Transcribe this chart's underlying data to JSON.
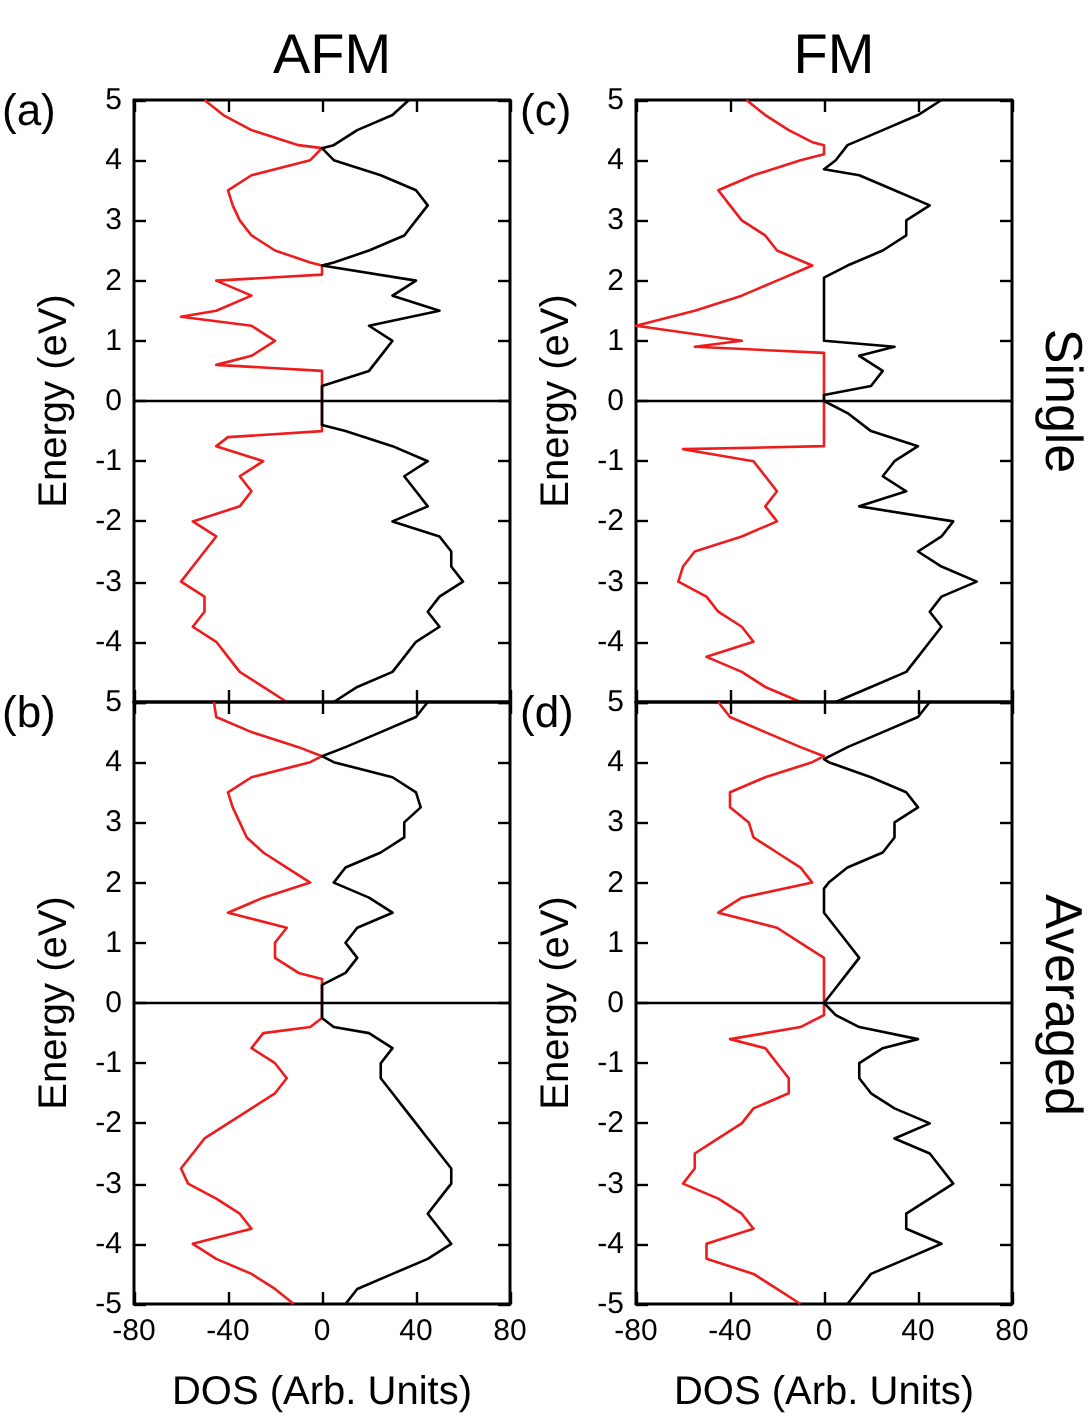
{
  "chart_data": [
    {
      "type": "line",
      "title": "AFM",
      "ylabel": "Energy (eV)",
      "annotations": [
        "(a)"
      ],
      "xlim": [
        -80,
        80
      ],
      "ylim": [
        -5,
        5
      ],
      "xticks": [
        -80,
        -40,
        0,
        40,
        80
      ],
      "yticks": [
        {
          "value": -5,
          "label": null
        },
        -4,
        -3,
        -2,
        -1,
        0,
        1,
        2,
        3,
        4,
        5
      ],
      "tick_labels": "y",
      "marker": "none",
      "line_style": "solid",
      "ref_lines": [
        {
          "axis": "y",
          "value": 0,
          "color": "#000000"
        }
      ],
      "series": [
        {
          "color": "#ee1c1c",
          "x": [
            -50,
            -42,
            -30,
            -10,
            0,
            -5,
            -30,
            -40,
            -38,
            -35,
            -30,
            -20,
            -5,
            0,
            0,
            -45,
            -30,
            -45,
            -60,
            -30,
            -20,
            -30,
            -45,
            0,
            0,
            0,
            0,
            0,
            -40,
            -45,
            -25,
            -35,
            -30,
            -35,
            -55,
            -45,
            -50,
            -55,
            -60,
            -50,
            -50,
            -55,
            -45,
            -40,
            -35,
            -25,
            -15
          ],
          "values": [
            5,
            4.75,
            4.5,
            4.25,
            4.2,
            4,
            3.75,
            3.5,
            3.25,
            3,
            2.75,
            2.5,
            2.3,
            2.25,
            2.1,
            2,
            1.75,
            1.5,
            1.4,
            1.25,
            1,
            0.75,
            0.6,
            0.5,
            0.25,
            0,
            -0.25,
            -0.5,
            -0.6,
            -0.75,
            -1,
            -1.25,
            -1.5,
            -1.75,
            -2,
            -2.25,
            -2.5,
            -2.75,
            -3,
            -3.25,
            -3.5,
            -3.75,
            -4,
            -4.25,
            -4.5,
            -4.75,
            -5
          ]
        },
        {
          "color": "#000000",
          "x": [
            37,
            30,
            15,
            5,
            0,
            5,
            25,
            40,
            45,
            40,
            35,
            20,
            5,
            0,
            40,
            30,
            50,
            20,
            30,
            25,
            20,
            0,
            0,
            0,
            0,
            10,
            30,
            45,
            35,
            40,
            45,
            30,
            50,
            55,
            55,
            60,
            50,
            45,
            50,
            40,
            35,
            30,
            15,
            5
          ],
          "values": [
            5,
            4.75,
            4.5,
            4.25,
            4.2,
            4,
            3.75,
            3.5,
            3.25,
            3,
            2.75,
            2.5,
            2.3,
            2.25,
            2,
            1.75,
            1.5,
            1.25,
            1,
            0.75,
            0.5,
            0.25,
            0,
            -0.25,
            -0.4,
            -0.5,
            -0.75,
            -1,
            -1.25,
            -1.5,
            -1.75,
            -2,
            -2.25,
            -2.5,
            -2.75,
            -3,
            -3.25,
            -3.5,
            -3.75,
            -4,
            -4.25,
            -4.5,
            -4.75,
            -5
          ]
        }
      ]
    },
    {
      "type": "line",
      "title": "FM",
      "ylabel": "Energy (eV)",
      "y2label": "Single",
      "annotations": [
        "(c)"
      ],
      "xlim": [
        -80,
        80
      ],
      "ylim": [
        -5,
        5
      ],
      "xticks": [
        -80,
        -40,
        0,
        40,
        80
      ],
      "yticks": [
        {
          "value": -5,
          "label": null
        },
        -4,
        -3,
        -2,
        -1,
        0,
        1,
        2,
        3,
        4,
        5
      ],
      "tick_labels": "y",
      "marker": "none",
      "line_style": "solid",
      "ref_lines": [
        {
          "axis": "y",
          "value": 0,
          "color": "#000000"
        }
      ],
      "series": [
        {
          "color": "#ee1c1c",
          "x": [
            -33,
            -25,
            -15,
            -5,
            0,
            0,
            -10,
            -30,
            -45,
            -40,
            -35,
            -25,
            -20,
            -5,
            -20,
            -35,
            -55,
            -80,
            -35,
            -55,
            0,
            0,
            0,
            0,
            0,
            -60,
            -30,
            -25,
            -20,
            -25,
            -20,
            -35,
            -55,
            -60,
            -62,
            -50,
            -45,
            -35,
            -30,
            -50,
            -35,
            -25,
            -10
          ],
          "values": [
            5,
            4.75,
            4.5,
            4.3,
            4.25,
            4.1,
            4,
            3.75,
            3.5,
            3.25,
            3,
            2.75,
            2.5,
            2.25,
            2,
            1.75,
            1.5,
            1.25,
            1,
            0.9,
            0.8,
            0.5,
            0,
            -0.5,
            -0.75,
            -0.8,
            -1,
            -1.25,
            -1.5,
            -1.75,
            -2,
            -2.25,
            -2.5,
            -2.75,
            -3,
            -3.25,
            -3.5,
            -3.75,
            -4,
            -4.25,
            -4.5,
            -4.75,
            -5
          ]
        },
        {
          "color": "#000000",
          "x": [
            50,
            40,
            25,
            10,
            5,
            0,
            15,
            30,
            45,
            35,
            35,
            25,
            10,
            0,
            0,
            0,
            0,
            30,
            15,
            25,
            20,
            0,
            0,
            10,
            20,
            40,
            30,
            25,
            35,
            15,
            55,
            50,
            40,
            50,
            65,
            50,
            45,
            50,
            45,
            40,
            35,
            20,
            5
          ],
          "values": [
            5,
            4.75,
            4.5,
            4.25,
            4,
            3.85,
            3.75,
            3.5,
            3.25,
            3,
            2.75,
            2.5,
            2.25,
            2.05,
            2,
            1.5,
            1,
            0.9,
            0.75,
            0.5,
            0.25,
            0.1,
            0,
            -0.2,
            -0.5,
            -0.75,
            -1,
            -1.25,
            -1.5,
            -1.75,
            -2,
            -2.25,
            -2.5,
            -2.75,
            -3,
            -3.25,
            -3.5,
            -3.75,
            -4,
            -4.25,
            -4.5,
            -4.75,
            -5
          ]
        }
      ]
    },
    {
      "type": "line",
      "xlabel": "DOS (Arb. Units)",
      "ylabel": "Energy (eV)",
      "annotations": [
        "(b)"
      ],
      "xlim": [
        -80,
        80
      ],
      "ylim": [
        -5,
        5
      ],
      "xticks": [
        -80,
        -40,
        0,
        40,
        80
      ],
      "yticks": [
        -5,
        -4,
        -3,
        -2,
        -1,
        0,
        1,
        2,
        3,
        4,
        5
      ],
      "marker": "none",
      "line_style": "solid",
      "ref_lines": [
        {
          "axis": "y",
          "value": 0,
          "color": "#000000"
        }
      ],
      "series": [
        {
          "color": "#ee1c1c",
          "x": [
            -46,
            -45,
            -30,
            -10,
            0,
            -5,
            -30,
            -40,
            -38,
            -35,
            -32,
            -25,
            -15,
            -5,
            -25,
            -40,
            -15,
            -20,
            -20,
            -10,
            0,
            0,
            0,
            0,
            -5,
            -25,
            -30,
            -20,
            -15,
            -20,
            -30,
            -40,
            -50,
            -55,
            -60,
            -57,
            -45,
            -35,
            -30,
            -55,
            -45,
            -30,
            -20,
            -12
          ],
          "values": [
            5,
            4.75,
            4.5,
            4.25,
            4.1,
            4,
            3.75,
            3.5,
            3.25,
            3,
            2.75,
            2.5,
            2.25,
            2,
            1.75,
            1.5,
            1.25,
            1,
            0.75,
            0.5,
            0.4,
            0.25,
            0,
            -0.25,
            -0.4,
            -0.5,
            -0.75,
            -1,
            -1.25,
            -1.5,
            -1.75,
            -2,
            -2.25,
            -2.5,
            -2.75,
            -3,
            -3.25,
            -3.5,
            -3.75,
            -4,
            -4.25,
            -4.5,
            -4.75,
            -5
          ]
        },
        {
          "color": "#000000",
          "x": [
            45,
            40,
            25,
            10,
            0,
            5,
            30,
            40,
            42,
            35,
            35,
            25,
            10,
            5,
            20,
            30,
            15,
            10,
            15,
            10,
            0,
            0,
            0,
            5,
            20,
            30,
            25,
            25,
            30,
            35,
            40,
            45,
            50,
            55,
            55,
            50,
            45,
            50,
            55,
            45,
            30,
            15,
            10
          ],
          "values": [
            5,
            4.75,
            4.5,
            4.25,
            4.1,
            4,
            3.75,
            3.5,
            3.25,
            3,
            2.75,
            2.5,
            2.25,
            2,
            1.75,
            1.5,
            1.25,
            1,
            0.75,
            0.5,
            0.3,
            0,
            -0.25,
            -0.4,
            -0.5,
            -0.75,
            -1,
            -1.25,
            -1.5,
            -1.75,
            -2,
            -2.25,
            -2.5,
            -2.75,
            -3,
            -3.25,
            -3.5,
            -3.75,
            -4,
            -4.25,
            -4.5,
            -4.75,
            -5
          ]
        }
      ]
    },
    {
      "type": "line",
      "xlabel": "DOS (Arb. Units)",
      "ylabel": "Energy (eV)",
      "y2label": "Averaged",
      "annotations": [
        "(d)"
      ],
      "xlim": [
        -80,
        80
      ],
      "ylim": [
        -5,
        5
      ],
      "xticks": [
        -80,
        -40,
        0,
        40,
        80
      ],
      "yticks": [
        -5,
        -4,
        -3,
        -2,
        -1,
        0,
        1,
        2,
        3,
        4,
        5
      ],
      "marker": "none",
      "line_style": "solid",
      "ref_lines": [
        {
          "axis": "y",
          "value": 0,
          "color": "#000000"
        }
      ],
      "series": [
        {
          "color": "#ee1c1c",
          "x": [
            -45,
            -40,
            -25,
            -10,
            0,
            -5,
            -25,
            -40,
            -40,
            -32,
            -30,
            -20,
            -10,
            -5,
            -35,
            -45,
            -20,
            -10,
            0,
            0,
            0,
            0,
            -10,
            -40,
            -25,
            -20,
            -15,
            -15,
            -30,
            -35,
            -45,
            -55,
            -55,
            -60,
            -45,
            -35,
            -30,
            -50,
            -50,
            -30,
            -20,
            -10
          ],
          "values": [
            5,
            4.75,
            4.5,
            4.25,
            4.1,
            4,
            3.75,
            3.5,
            3.25,
            3,
            2.75,
            2.5,
            2.25,
            2,
            1.75,
            1.5,
            1.25,
            1,
            0.75,
            0.5,
            0,
            -0.2,
            -0.4,
            -0.6,
            -0.75,
            -1,
            -1.25,
            -1.5,
            -1.75,
            -2,
            -2.25,
            -2.5,
            -2.75,
            -3,
            -3.25,
            -3.5,
            -3.75,
            -4,
            -4.25,
            -4.5,
            -4.75,
            -5
          ]
        },
        {
          "color": "#000000",
          "x": [
            45,
            40,
            25,
            10,
            0,
            2,
            20,
            35,
            40,
            30,
            30,
            25,
            10,
            2,
            0,
            0,
            10,
            15,
            10,
            5,
            0,
            5,
            15,
            40,
            25,
            15,
            15,
            20,
            30,
            45,
            30,
            45,
            50,
            55,
            45,
            35,
            35,
            50,
            35,
            20,
            15,
            10
          ],
          "values": [
            5,
            4.75,
            4.5,
            4.25,
            4.05,
            4,
            3.75,
            3.5,
            3.25,
            3,
            2.75,
            2.5,
            2.25,
            2,
            1.9,
            1.5,
            1,
            0.75,
            0.5,
            0.25,
            0,
            -0.2,
            -0.4,
            -0.6,
            -0.75,
            -1,
            -1.25,
            -1.5,
            -1.75,
            -2,
            -2.25,
            -2.5,
            -2.75,
            -3,
            -3.25,
            -3.5,
            -3.75,
            -4,
            -4.25,
            -4.5,
            -4.75,
            -5
          ]
        }
      ]
    }
  ]
}
